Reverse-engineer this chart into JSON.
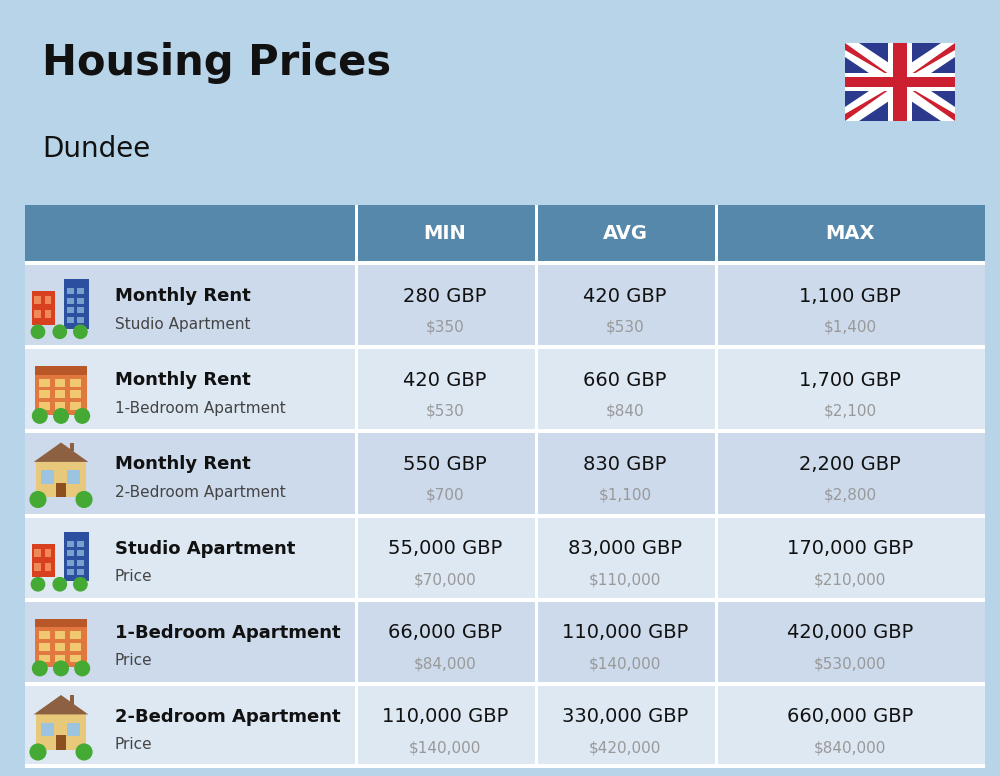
{
  "title": "Housing Prices",
  "subtitle": "Dundee",
  "background_color": "#b8d4e8",
  "header_color": "#5588aa",
  "header_text_color": "#ffffff",
  "row_bg_odd": "#ccdaeb",
  "row_bg_even": "#dde8f3",
  "col_headers": [
    "MIN",
    "AVG",
    "MAX"
  ],
  "rows": [
    {
      "bold_label": "Monthly Rent",
      "sub_label": "Studio Apartment",
      "min_gbp": "280 GBP",
      "min_usd": "$350",
      "avg_gbp": "420 GBP",
      "avg_usd": "$530",
      "max_gbp": "1,100 GBP",
      "max_usd": "$1,400",
      "icon_type": "studio_blue"
    },
    {
      "bold_label": "Monthly Rent",
      "sub_label": "1-Bedroom Apartment",
      "min_gbp": "420 GBP",
      "min_usd": "$530",
      "avg_gbp": "660 GBP",
      "avg_usd": "$840",
      "max_gbp": "1,700 GBP",
      "max_usd": "$2,100",
      "icon_type": "apt_orange"
    },
    {
      "bold_label": "Monthly Rent",
      "sub_label": "2-Bedroom Apartment",
      "min_gbp": "550 GBP",
      "min_usd": "$700",
      "avg_gbp": "830 GBP",
      "avg_usd": "$1,100",
      "max_gbp": "2,200 GBP",
      "max_usd": "$2,800",
      "icon_type": "apt_tan"
    },
    {
      "bold_label": "Studio Apartment",
      "sub_label": "Price",
      "min_gbp": "55,000 GBP",
      "min_usd": "$70,000",
      "avg_gbp": "83,000 GBP",
      "avg_usd": "$110,000",
      "max_gbp": "170,000 GBP",
      "max_usd": "$210,000",
      "icon_type": "studio_blue"
    },
    {
      "bold_label": "1-Bedroom Apartment",
      "sub_label": "Price",
      "min_gbp": "66,000 GBP",
      "min_usd": "$84,000",
      "avg_gbp": "110,000 GBP",
      "avg_usd": "$140,000",
      "max_gbp": "420,000 GBP",
      "max_usd": "$530,000",
      "icon_type": "apt_orange"
    },
    {
      "bold_label": "2-Bedroom Apartment",
      "sub_label": "Price",
      "min_gbp": "110,000 GBP",
      "min_usd": "$140,000",
      "avg_gbp": "330,000 GBP",
      "avg_usd": "$420,000",
      "max_gbp": "660,000 GBP",
      "max_usd": "$840,000",
      "icon_type": "apt_tan"
    }
  ],
  "title_fontsize": 30,
  "subtitle_fontsize": 20,
  "header_fontsize": 14,
  "value_fontsize": 14,
  "usd_fontsize": 11,
  "label_bold_fontsize": 13,
  "label_sub_fontsize": 11
}
